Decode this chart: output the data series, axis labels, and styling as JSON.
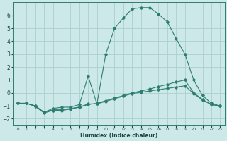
{
  "xlabel": "Humidex (Indice chaleur)",
  "background_color": "#cce8e8",
  "grid_color": "#aad0d0",
  "line_color": "#2e7d72",
  "xlim": [
    -0.5,
    23.5
  ],
  "ylim": [
    -2.5,
    7.0
  ],
  "yticks": [
    -2,
    -1,
    0,
    1,
    2,
    3,
    4,
    5,
    6
  ],
  "xticks": [
    0,
    1,
    2,
    3,
    4,
    5,
    6,
    7,
    8,
    9,
    10,
    11,
    12,
    13,
    14,
    15,
    16,
    17,
    18,
    19,
    20,
    21,
    22,
    23
  ],
  "series": [
    {
      "x": [
        0,
        1,
        2,
        3,
        4,
        5,
        6,
        7,
        8,
        9,
        10,
        11,
        12,
        13,
        14,
        15,
        16,
        17,
        18,
        19,
        20,
        21,
        22,
        23
      ],
      "y": [
        -0.8,
        -0.8,
        -1.0,
        -1.5,
        -1.3,
        -1.3,
        -1.2,
        -1.1,
        -0.9,
        -0.8,
        -0.6,
        -0.4,
        -0.2,
        0.0,
        0.15,
        0.3,
        0.5,
        0.65,
        0.85,
        1.0,
        0.0,
        -0.5,
        -0.9,
        -1.0
      ]
    },
    {
      "x": [
        0,
        1,
        2,
        3,
        4,
        5,
        6,
        7,
        8,
        9,
        10,
        11,
        12,
        13,
        14,
        15,
        16,
        17,
        18,
        19,
        20,
        21,
        22,
        23
      ],
      "y": [
        -0.8,
        -0.8,
        -1.05,
        -1.55,
        -1.35,
        -1.35,
        -1.25,
        -1.1,
        -0.85,
        -0.85,
        -0.65,
        -0.45,
        -0.25,
        -0.05,
        0.05,
        0.15,
        0.25,
        0.35,
        0.45,
        0.55,
        -0.05,
        -0.55,
        -0.9,
        -1.0
      ]
    },
    {
      "x": [
        0,
        1,
        2,
        3,
        4,
        5,
        6,
        7,
        8,
        9,
        10,
        11,
        12,
        13,
        14,
        15,
        16,
        17,
        18,
        19,
        20,
        21,
        22,
        23
      ],
      "y": [
        -0.8,
        -0.8,
        -1.0,
        -1.5,
        -1.2,
        -1.1,
        -1.1,
        -0.9,
        1.3,
        -0.85,
        3.0,
        5.0,
        5.8,
        6.5,
        6.6,
        6.6,
        6.1,
        5.5,
        4.2,
        3.0,
        1.0,
        -0.2,
        -0.8,
        -1.0
      ]
    }
  ]
}
